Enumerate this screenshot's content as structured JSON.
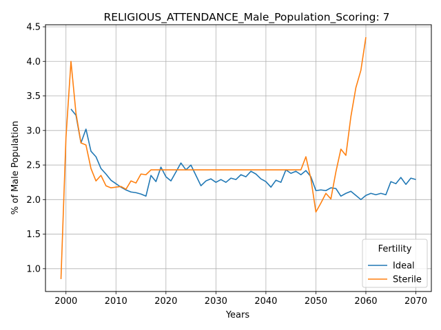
{
  "chart_data": {
    "type": "line",
    "title": "RELIGIOUS_ATTENDANCE_Male_Population_Scoring: 7",
    "xlabel": "Years",
    "ylabel": "% of Male Population",
    "xlim": [
      1995.9,
      2073.1
    ],
    "ylim": [
      0.67,
      4.53
    ],
    "xticks": [
      2000,
      2010,
      2020,
      2030,
      2040,
      2050,
      2060,
      2070
    ],
    "yticks": [
      1.0,
      1.5,
      2.0,
      2.5,
      3.0,
      3.5,
      4.0,
      4.5
    ],
    "ytick_labels": [
      "1.0",
      "1.5",
      "2.0",
      "2.5",
      "3.0",
      "3.5",
      "4.0",
      "4.5"
    ],
    "grid": true,
    "legend": {
      "title": "Fertility",
      "position": "bottom-right"
    },
    "series": [
      {
        "name": "Ideal",
        "color": "#1f77b4",
        "x": [
          2001,
          2002,
          2003,
          2004,
          2005,
          2006,
          2007,
          2008,
          2009,
          2010,
          2011,
          2012,
          2013,
          2014,
          2015,
          2016,
          2017,
          2018,
          2019,
          2020,
          2021,
          2022,
          2023,
          2024,
          2025,
          2026,
          2027,
          2028,
          2029,
          2030,
          2031,
          2032,
          2033,
          2034,
          2035,
          2036,
          2037,
          2038,
          2039,
          2040,
          2041,
          2042,
          2043,
          2044,
          2045,
          2046,
          2047,
          2048,
          2049,
          2050,
          2051,
          2052,
          2053,
          2054,
          2055,
          2056,
          2057,
          2058,
          2059,
          2060,
          2061,
          2062,
          2063,
          2064,
          2065,
          2066,
          2067,
          2068,
          2069,
          2070
        ],
        "y": [
          3.31,
          3.22,
          2.82,
          3.02,
          2.7,
          2.62,
          2.45,
          2.37,
          2.28,
          2.23,
          2.18,
          2.14,
          2.11,
          2.1,
          2.08,
          2.05,
          2.35,
          2.26,
          2.47,
          2.33,
          2.27,
          2.4,
          2.53,
          2.43,
          2.5,
          2.35,
          2.2,
          2.27,
          2.3,
          2.25,
          2.29,
          2.25,
          2.31,
          2.29,
          2.36,
          2.33,
          2.41,
          2.37,
          2.3,
          2.26,
          2.18,
          2.28,
          2.25,
          2.43,
          2.38,
          2.41,
          2.36,
          2.42,
          2.33,
          2.13,
          2.14,
          2.13,
          2.17,
          2.16,
          2.05,
          2.09,
          2.12,
          2.06,
          2.0,
          2.06,
          2.09,
          2.07,
          2.09,
          2.07,
          2.26,
          2.23,
          2.32,
          2.22,
          2.31,
          2.29
        ]
      },
      {
        "name": "Sterile",
        "color": "#ff7f0e",
        "x": [
          1999,
          2000,
          2001,
          2002,
          2003,
          2004,
          2005,
          2006,
          2007,
          2008,
          2009,
          2010,
          2011,
          2012,
          2013,
          2014,
          2015,
          2016,
          2017,
          2018,
          2019,
          2020,
          2021,
          2022,
          2023,
          2024,
          2025,
          2026,
          2027,
          2028,
          2029,
          2030,
          2031,
          2032,
          2033,
          2034,
          2035,
          2036,
          2037,
          2038,
          2039,
          2040,
          2041,
          2042,
          2043,
          2044,
          2045,
          2046,
          2047,
          2048,
          2049,
          2050,
          2051,
          2052,
          2053,
          2054,
          2055,
          2056,
          2057,
          2058,
          2059,
          2060
        ],
        "y": [
          0.85,
          2.9,
          4.0,
          3.25,
          2.82,
          2.79,
          2.45,
          2.27,
          2.35,
          2.2,
          2.17,
          2.18,
          2.19,
          2.15,
          2.27,
          2.24,
          2.37,
          2.36,
          2.43,
          2.43,
          2.43,
          2.43,
          2.43,
          2.43,
          2.43,
          2.43,
          2.43,
          2.43,
          2.43,
          2.43,
          2.43,
          2.43,
          2.43,
          2.43,
          2.43,
          2.43,
          2.43,
          2.43,
          2.43,
          2.43,
          2.43,
          2.43,
          2.43,
          2.43,
          2.43,
          2.43,
          2.43,
          2.43,
          2.43,
          2.62,
          2.3,
          1.82,
          1.95,
          2.09,
          2.01,
          2.4,
          2.73,
          2.64,
          3.2,
          3.62,
          3.87,
          4.35
        ]
      }
    ]
  }
}
